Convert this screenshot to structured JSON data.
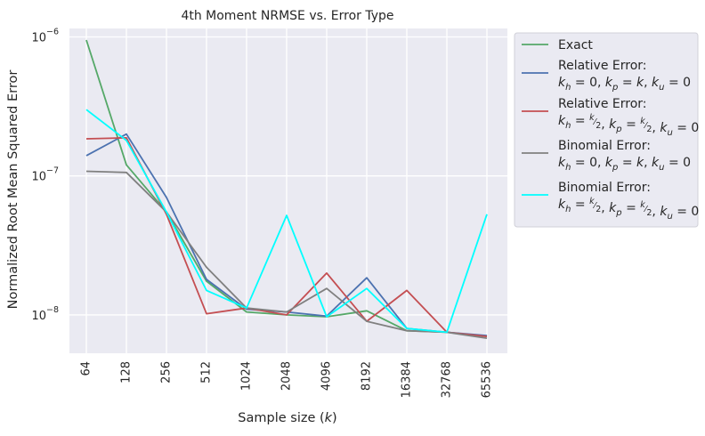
{
  "chart_data": {
    "type": "line",
    "title": "4th Moment NRMSE vs. Error Type",
    "xlabel": "Sample size (k)",
    "ylabel": "Normalized Root Mean Squared Error",
    "y_scale": "log",
    "ylim": [
      5.3e-09,
      1.15e-06
    ],
    "grid": true,
    "legend_position": "outside-right",
    "categories": [
      "64",
      "128",
      "256",
      "512",
      "1024",
      "2048",
      "4096",
      "8192",
      "16384",
      "32768",
      "65536"
    ],
    "y_ticks": [
      {
        "value": 1e-08,
        "base": "10",
        "exp": "−8"
      },
      {
        "value": 1e-07,
        "base": "10",
        "exp": "−7"
      },
      {
        "value": 1e-06,
        "base": "10",
        "exp": "−6"
      }
    ],
    "series": [
      {
        "name": "Exact",
        "color": "#55a868",
        "values": [
          9.5e-07,
          1.2e-07,
          5.5e-08,
          1.75e-08,
          1.05e-08,
          1e-08,
          9.7e-09,
          1.07e-08,
          7.7e-09,
          7.5e-09,
          7e-09
        ]
      },
      {
        "name": "Relative Error:",
        "math": "k_h=0, k_p=k, k_u=0",
        "color": "#4c72b0",
        "values": [
          1.4e-07,
          2e-07,
          7e-08,
          1.8e-08,
          1.1e-08,
          1.05e-08,
          9.8e-09,
          1.85e-08,
          8e-09,
          7.5e-09,
          7.1e-09
        ]
      },
      {
        "name": "Relative Error:",
        "math": "k_h=k/2, k_p=k/2, k_u=0",
        "color": "#c44e52",
        "values": [
          1.85e-07,
          1.88e-07,
          5.3e-08,
          1.02e-08,
          1.12e-08,
          1e-08,
          2e-08,
          9e-09,
          1.5e-08,
          7.5e-09,
          7e-09
        ]
      },
      {
        "name": "Binomial Error:",
        "math": "k_h=0, k_p=k, k_u=0",
        "color": "#808080",
        "values": [
          1.08e-07,
          1.06e-07,
          5.5e-08,
          2.2e-08,
          1.12e-08,
          1.05e-08,
          1.55e-08,
          9e-09,
          7.7e-09,
          7.5e-09,
          6.8e-09
        ]
      },
      {
        "name": "Binomial Error:",
        "math": "k_h=k/2, k_p=k/2, k_u=0",
        "color": "#00ffff",
        "values": [
          3e-07,
          1.8e-07,
          5.5e-08,
          1.5e-08,
          1.12e-08,
          5.2e-08,
          9.7e-09,
          1.55e-08,
          8e-09,
          7.5e-09,
          5.3e-08
        ]
      }
    ]
  }
}
